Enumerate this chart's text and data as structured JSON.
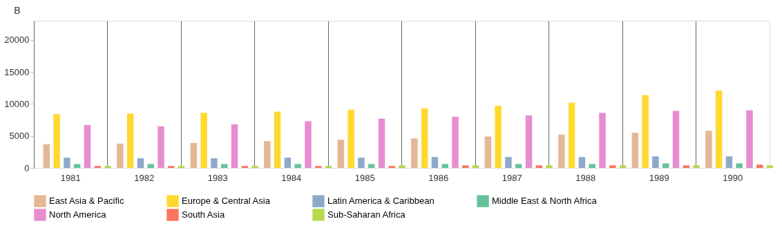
{
  "chart_data": {
    "type": "bar",
    "ylabel": "B",
    "categories": [
      "1981",
      "1982",
      "1983",
      "1984",
      "1985",
      "1986",
      "1987",
      "1988",
      "1989",
      "1990"
    ],
    "series": [
      {
        "name": "East Asia & Pacific",
        "color": "#e5b794",
        "values": [
          3700,
          3800,
          3900,
          4200,
          4400,
          4600,
          4900,
          5200,
          5500,
          5800
        ]
      },
      {
        "name": "Europe & Central Asia",
        "color": "#ffd92f",
        "values": [
          8400,
          8500,
          8600,
          8800,
          9100,
          9300,
          9700,
          10200,
          11400,
          12100
        ]
      },
      {
        "name": "Latin America & Caribbean",
        "color": "#8da9ca",
        "values": [
          1600,
          1500,
          1500,
          1600,
          1600,
          1700,
          1700,
          1700,
          1800,
          1800
        ]
      },
      {
        "name": "Middle East & North Africa",
        "color": "#66c29a",
        "values": [
          600,
          600,
          600,
          600,
          600,
          600,
          600,
          600,
          700,
          700
        ]
      },
      {
        "name": "North America",
        "color": "#e78ccf",
        "values": [
          6700,
          6500,
          6800,
          7300,
          7700,
          8000,
          8200,
          8600,
          8900,
          9000
        ]
      },
      {
        "name": "South Asia",
        "color": "#fc735e",
        "values": [
          300,
          300,
          300,
          300,
          300,
          400,
          400,
          400,
          400,
          500
        ]
      },
      {
        "name": "Sub-Saharan Africa",
        "color": "#b6d94c",
        "values": [
          300,
          300,
          300,
          300,
          400,
          400,
          400,
          400,
          400,
          400
        ]
      }
    ],
    "ylim": [
      0,
      23000
    ],
    "yticks": [
      0,
      5000,
      10000,
      15000,
      20000
    ],
    "grid": "x",
    "legend": "bottom"
  }
}
